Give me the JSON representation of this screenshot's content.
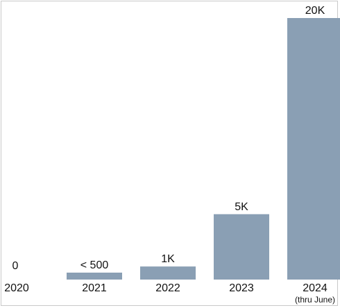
{
  "chart_data": {
    "type": "bar",
    "categories": [
      "2020",
      "2021",
      "2022",
      "2023",
      "2024"
    ],
    "category_sublabels": [
      "",
      "",
      "",
      "",
      "(thru June)"
    ],
    "values": [
      0,
      500,
      1000,
      5000,
      20000
    ],
    "data_labels": [
      "0",
      "< 500",
      "1K",
      "5K",
      "20K"
    ],
    "title": "",
    "xlabel": "",
    "ylabel": "",
    "ylim": [
      0,
      20000
    ],
    "grid": false,
    "legend": "none",
    "bar_color": "#8a9fb4"
  }
}
